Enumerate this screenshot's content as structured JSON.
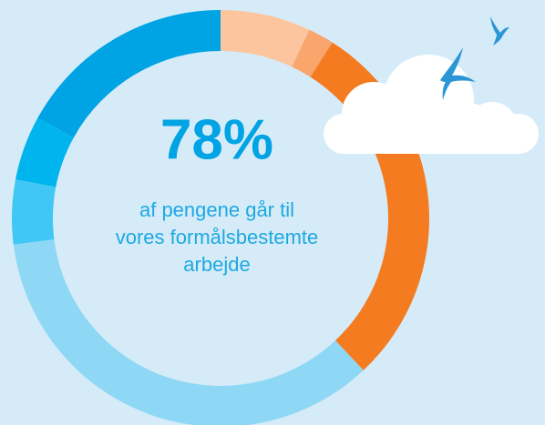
{
  "chart_data": {
    "type": "donut",
    "headline": "78%",
    "caption_lines": [
      "af pengene går til",
      "vores formålsbestemte",
      "arbejde"
    ],
    "categories": [
      null,
      null,
      null,
      null,
      null,
      null,
      null
    ],
    "values": [
      7,
      2,
      29,
      35,
      5,
      5,
      17
    ],
    "colors": [
      "#fcc59e",
      "#f9a56c",
      "#f47b20",
      "#8ed8f6",
      "#40c7f3",
      "#00b5ed",
      "#00a3e3"
    ]
  }
}
